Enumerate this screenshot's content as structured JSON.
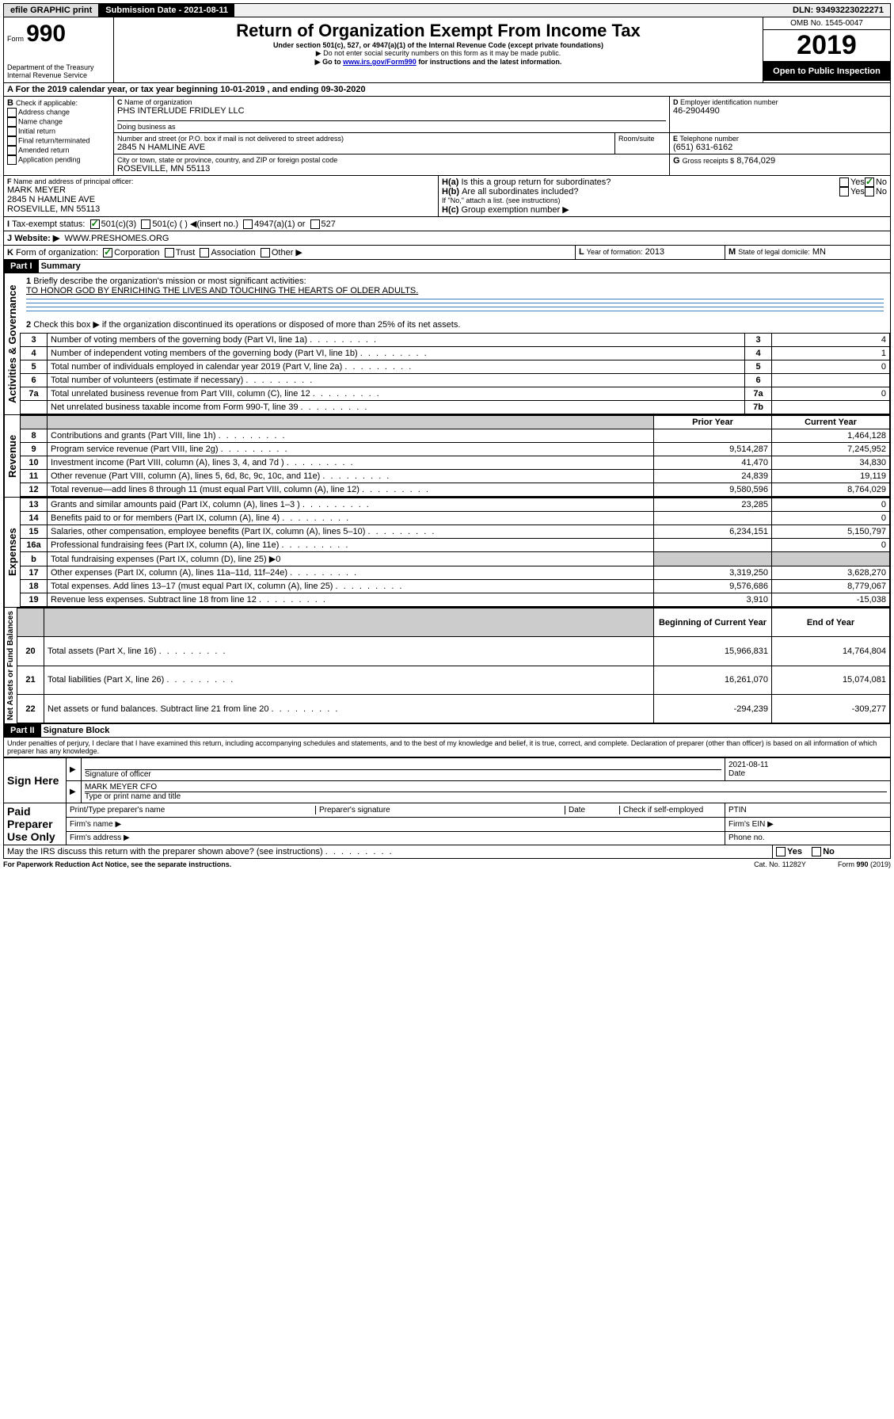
{
  "topbar": {
    "efile": "efile GRAPHIC print",
    "submission_label": "Submission Date - 2021-08-11",
    "dln": "DLN: 93493223022271"
  },
  "header": {
    "form_prefix": "Form",
    "form_number": "990",
    "dept": "Department of the Treasury",
    "irs": "Internal Revenue Service",
    "title": "Return of Organization Exempt From Income Tax",
    "subtitle": "Under section 501(c), 527, or 4947(a)(1) of the Internal Revenue Code (except private foundations)",
    "note1": "Do not enter social security numbers on this form as it may be made public.",
    "note2_pre": "Go to ",
    "note2_link": "www.irs.gov/Form990",
    "note2_post": " for instructions and the latest information.",
    "omb": "OMB No. 1545-0047",
    "year": "2019",
    "inspection": "Open to Public Inspection"
  },
  "line_a": {
    "text": "For the 2019 calendar year, or tax year beginning 10-01-2019   , and ending 09-30-2020"
  },
  "section_b": {
    "label": "Check if applicable:",
    "opts": [
      "Address change",
      "Name change",
      "Initial return",
      "Final return/terminated",
      "Amended return",
      "Application pending"
    ]
  },
  "section_c": {
    "label": "Name of organization",
    "org": "PHS INTERLUDE FRIDLEY LLC",
    "dba_label": "Doing business as",
    "addr_label": "Number and street (or P.O. box if mail is not delivered to street address)",
    "room_label": "Room/suite",
    "addr": "2845 N HAMLINE AVE",
    "city_label": "City or town, state or province, country, and ZIP or foreign postal code",
    "city": "ROSEVILLE, MN  55113"
  },
  "section_d": {
    "label": "Employer identification number",
    "val": "46-2904490"
  },
  "section_e": {
    "label": "Telephone number",
    "val": "(651) 631-6162"
  },
  "section_g": {
    "label": "Gross receipts $",
    "val": "8,764,029"
  },
  "section_f": {
    "label": "Name and address of principal officer:",
    "name": "MARK MEYER",
    "addr1": "2845 N HAMLINE AVE",
    "addr2": "ROSEVILLE, MN  55113"
  },
  "section_h": {
    "a": "Is this a group return for subordinates?",
    "b": "Are all subordinates included?",
    "note": "If \"No,\" attach a list. (see instructions)",
    "c": "Group exemption number ▶"
  },
  "section_i": {
    "label": "Tax-exempt status:",
    "opts": [
      "501(c)(3)",
      "501(c) (  ) ◀(insert no.)",
      "4947(a)(1) or",
      "527"
    ]
  },
  "section_j": {
    "label": "Website: ▶",
    "val": "WWW.PRESHOMES.ORG"
  },
  "section_k": {
    "label": "Form of organization:",
    "opts": [
      "Corporation",
      "Trust",
      "Association",
      "Other ▶"
    ]
  },
  "section_l": {
    "label": "Year of formation:",
    "val": "2013"
  },
  "section_m": {
    "label": "State of legal domicile:",
    "val": "MN"
  },
  "part1": {
    "header": "Part I",
    "title": "Summary",
    "q1": "Briefly describe the organization's mission or most significant activities:",
    "mission": "TO HONOR GOD BY ENRICHING THE LIVES AND TOUCHING THE HEARTS OF OLDER ADULTS.",
    "q2": "Check this box ▶        if the organization discontinued its operations or disposed of more than 25% of its net assets.",
    "governance_label": "Activities & Governance",
    "revenue_label": "Revenue",
    "expenses_label": "Expenses",
    "netassets_label": "Net Assets or Fund Balances",
    "rows_gov": [
      {
        "n": "3",
        "t": "Number of voting members of the governing body (Part VI, line 1a)",
        "rn": "3",
        "v": "4"
      },
      {
        "n": "4",
        "t": "Number of independent voting members of the governing body (Part VI, line 1b)",
        "rn": "4",
        "v": "1"
      },
      {
        "n": "5",
        "t": "Total number of individuals employed in calendar year 2019 (Part V, line 2a)",
        "rn": "5",
        "v": "0"
      },
      {
        "n": "6",
        "t": "Total number of volunteers (estimate if necessary)",
        "rn": "6",
        "v": ""
      },
      {
        "n": "7a",
        "t": "Total unrelated business revenue from Part VIII, column (C), line 12",
        "rn": "7a",
        "v": "0"
      },
      {
        "n": "",
        "t": "Net unrelated business taxable income from Form 990-T, line 39",
        "rn": "7b",
        "v": ""
      }
    ],
    "col_headers": {
      "prior": "Prior Year",
      "current": "Current Year"
    },
    "rows_rev": [
      {
        "n": "8",
        "t": "Contributions and grants (Part VIII, line 1h)",
        "p": "",
        "c": "1,464,128"
      },
      {
        "n": "9",
        "t": "Program service revenue (Part VIII, line 2g)",
        "p": "9,514,287",
        "c": "7,245,952"
      },
      {
        "n": "10",
        "t": "Investment income (Part VIII, column (A), lines 3, 4, and 7d )",
        "p": "41,470",
        "c": "34,830"
      },
      {
        "n": "11",
        "t": "Other revenue (Part VIII, column (A), lines 5, 6d, 8c, 9c, 10c, and 11e)",
        "p": "24,839",
        "c": "19,119"
      },
      {
        "n": "12",
        "t": "Total revenue—add lines 8 through 11 (must equal Part VIII, column (A), line 12)",
        "p": "9,580,596",
        "c": "8,764,029"
      }
    ],
    "rows_exp": [
      {
        "n": "13",
        "t": "Grants and similar amounts paid (Part IX, column (A), lines 1–3 )",
        "p": "23,285",
        "c": "0"
      },
      {
        "n": "14",
        "t": "Benefits paid to or for members (Part IX, column (A), line 4)",
        "p": "",
        "c": "0"
      },
      {
        "n": "15",
        "t": "Salaries, other compensation, employee benefits (Part IX, column (A), lines 5–10)",
        "p": "6,234,151",
        "c": "5,150,797"
      },
      {
        "n": "16a",
        "t": "Professional fundraising fees (Part IX, column (A), line 11e)",
        "p": "",
        "c": "0"
      },
      {
        "n": "b",
        "t": "Total fundraising expenses (Part IX, column (D), line 25) ▶0",
        "p": null,
        "c": null
      },
      {
        "n": "17",
        "t": "Other expenses (Part IX, column (A), lines 11a–11d, 11f–24e)",
        "p": "3,319,250",
        "c": "3,628,270"
      },
      {
        "n": "18",
        "t": "Total expenses. Add lines 13–17 (must equal Part IX, column (A), line 25)",
        "p": "9,576,686",
        "c": "8,779,067"
      },
      {
        "n": "19",
        "t": "Revenue less expenses. Subtract line 18 from line 12",
        "p": "3,910",
        "c": "-15,038"
      }
    ],
    "col_headers2": {
      "beg": "Beginning of Current Year",
      "end": "End of Year"
    },
    "rows_net": [
      {
        "n": "20",
        "t": "Total assets (Part X, line 16)",
        "p": "15,966,831",
        "c": "14,764,804"
      },
      {
        "n": "21",
        "t": "Total liabilities (Part X, line 26)",
        "p": "16,261,070",
        "c": "15,074,081"
      },
      {
        "n": "22",
        "t": "Net assets or fund balances. Subtract line 21 from line 20",
        "p": "-294,239",
        "c": "-309,277"
      }
    ]
  },
  "part2": {
    "header": "Part II",
    "title": "Signature Block",
    "perjury": "Under penalties of perjury, I declare that I have examined this return, including accompanying schedules and statements, and to the best of my knowledge and belief, it is true, correct, and complete. Declaration of preparer (other than officer) is based on all information of which preparer has any knowledge.",
    "sign_here": "Sign Here",
    "sig_officer": "Signature of officer",
    "sig_date": "2021-08-11",
    "date_label": "Date",
    "officer_name": "MARK MEYER CFO",
    "type_name": "Type or print name and title",
    "paid": "Paid Preparer Use Only",
    "prep_name": "Print/Type preparer's name",
    "prep_sig": "Preparer's signature",
    "ptin": "PTIN",
    "check_self": "Check         if self-employed",
    "firm_name": "Firm's name  ▶",
    "firm_ein": "Firm's EIN ▶",
    "firm_addr": "Firm's address ▶",
    "phone": "Phone no.",
    "discuss": "May the IRS discuss this return with the preparer shown above? (see instructions)",
    "yes": "Yes",
    "no": "No"
  },
  "footer": {
    "paperwork": "For Paperwork Reduction Act Notice, see the separate instructions.",
    "cat": "Cat. No. 11282Y",
    "form": "Form 990 (2019)"
  }
}
